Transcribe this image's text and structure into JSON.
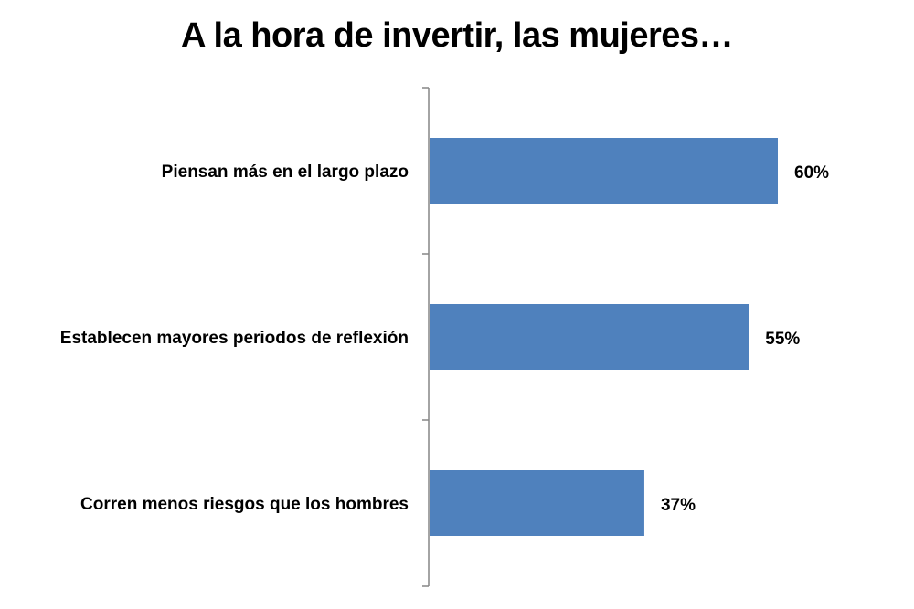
{
  "chart_data": {
    "type": "bar",
    "orientation": "horizontal",
    "title": "A la hora de invertir, las mujeres…",
    "categories": [
      "Piensan más en el largo plazo",
      "Establecen mayores periodos de reflexión",
      "Corren menos riesgos que los hombres"
    ],
    "values": [
      60,
      55,
      37
    ],
    "value_labels": [
      "60%",
      "55%",
      "37%"
    ],
    "xlim": [
      0,
      75
    ],
    "grid": false,
    "legend": "none",
    "bar_color": "#4F81BD"
  }
}
